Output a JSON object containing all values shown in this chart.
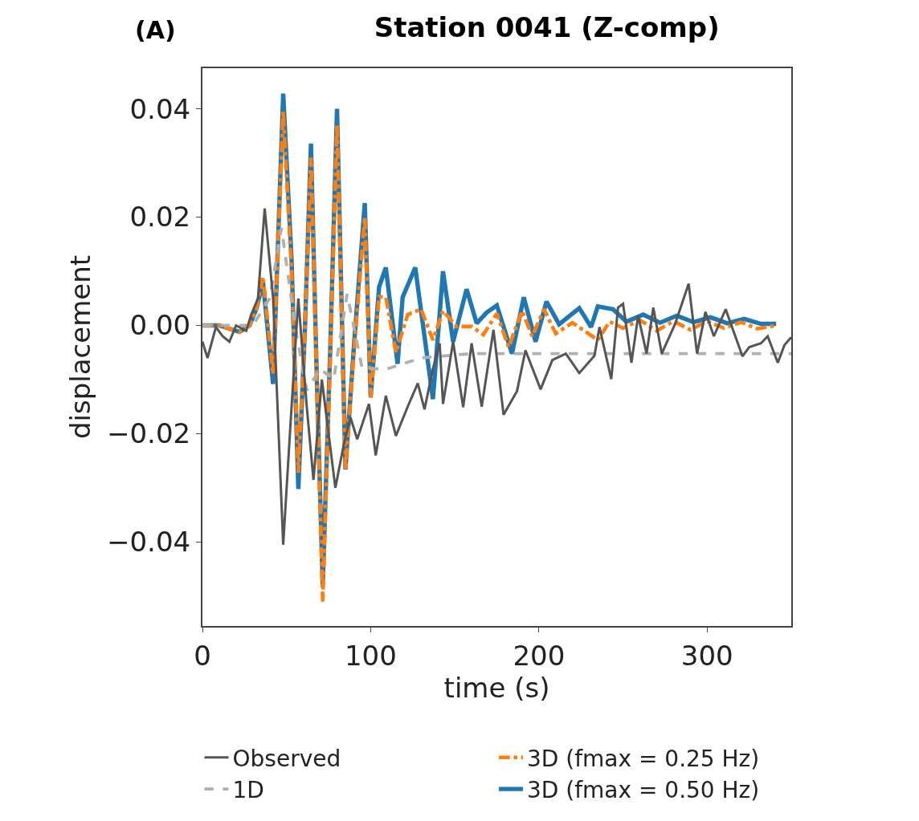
{
  "chart_data": {
    "type": "line",
    "title": "Station 0041 (Z-comp)",
    "xlabel": "time (s)",
    "ylabel": "displacement",
    "annotations": [
      "(A)"
    ],
    "xlim": [
      0,
      350
    ],
    "ylim": [
      -0.0555,
      0.0475
    ],
    "xticks": [
      0,
      100,
      200,
      300
    ],
    "yticks": [
      {
        "value": -0.04,
        "label": "−0.04"
      },
      {
        "value": -0.02,
        "label": "−0.02"
      },
      {
        "value": 0,
        "label": "0.00"
      },
      {
        "value": 0.02,
        "label": "0.02"
      },
      {
        "value": 0.04,
        "label": "0.04"
      }
    ],
    "grid": false,
    "legend": "bottom",
    "marker": "none",
    "series": [
      {
        "name": "Observed",
        "color": "#555555",
        "line_style": "solid",
        "x": [
          0,
          3,
          8,
          12,
          16,
          20,
          26,
          29,
          33,
          37,
          42,
          48,
          52,
          57,
          62,
          66,
          71,
          75,
          79,
          84,
          88,
          92,
          99,
          103,
          109,
          115,
          122,
          128,
          132,
          137,
          141,
          143,
          149,
          155,
          160,
          166,
          173,
          179,
          187,
          192,
          201,
          208,
          216,
          224,
          233,
          236,
          243,
          247,
          250,
          255,
          259,
          264,
          268,
          273,
          281,
          285,
          289,
          294,
          299,
          304,
          311,
          321,
          325,
          332,
          336,
          342,
          346,
          350
        ],
        "values": [
          -0.003,
          -0.006,
          -0.0003,
          -0.002,
          -0.003,
          0,
          -0.001,
          0.002,
          0.005,
          0.0216,
          0.005,
          -0.0405,
          -0.02,
          0.005,
          -0.015,
          -0.0285,
          -0.01,
          -0.02,
          -0.03,
          -0.022,
          -0.017,
          -0.021,
          -0.0145,
          -0.024,
          -0.013,
          -0.0204,
          -0.015,
          -0.0107,
          -0.0155,
          -0.008,
          -0.0033,
          -0.0145,
          -0.003,
          -0.0151,
          -0.0033,
          -0.015,
          -0.0008,
          -0.0165,
          -0.0121,
          -0.0046,
          -0.0118,
          -0.0064,
          -0.0052,
          -0.0088,
          -0.0056,
          -0.0003,
          -0.0099,
          0.0033,
          0.004,
          -0.0069,
          0.0018,
          -0.0052,
          0.0033,
          -0.0052,
          0.0003,
          0.004,
          0.0077,
          -0.0052,
          0.0025,
          -0.002,
          0.003,
          -0.0057,
          -0.004,
          -0.0033,
          -0.002,
          -0.0069,
          -0.0036,
          -0.0022
        ]
      },
      {
        "name": "1D",
        "color": "#b0b0b0",
        "line_style": "dashed",
        "x": [
          0,
          30,
          40,
          47,
          55,
          62,
          70,
          78,
          86,
          95,
          110,
          130,
          160,
          350
        ],
        "values": [
          0,
          0,
          0.005,
          0.018,
          0,
          -0.012,
          -0.008,
          -0.01,
          0.0058,
          -0.008,
          -0.008,
          -0.006,
          -0.0052,
          -0.0052
        ]
      },
      {
        "name": "3D (fmax = 0.25 Hz)",
        "color": "#ff7f0e",
        "line_style": "dashdot",
        "x": [
          0,
          10,
          22,
          28,
          32,
          36,
          42,
          48,
          53,
          57,
          61,
          64.5,
          68,
          71.5,
          76,
          80,
          85,
          90,
          96.5,
          100,
          105,
          109,
          115,
          122,
          130,
          137,
          143,
          151,
          160,
          167,
          175,
          182,
          190,
          196,
          203,
          210,
          220,
          235,
          242,
          250,
          260,
          270,
          280,
          290,
          300,
          310,
          320,
          330,
          341
        ],
        "values": [
          0,
          0,
          -0.0012,
          0,
          0.003,
          0.009,
          -0.009,
          0.0395,
          0.01,
          -0.0272,
          0.0,
          0.031,
          -0.01,
          -0.051,
          -0.005,
          0.037,
          -0.0266,
          -0.005,
          0.02,
          -0.0133,
          0.0053,
          0.0052,
          -0.005,
          0.002,
          0.003,
          -0.0027,
          0.0027,
          -0.0002,
          -0.0002,
          -0.0017,
          0.0022,
          -0.004,
          0.0027,
          -0.002,
          0.003,
          -0.0015,
          0.0005,
          -0.0027,
          0.0007,
          -0.0005,
          0.001,
          -0.001,
          0.0008,
          -0.0008,
          0.0008,
          -0.0005,
          0.0006,
          -0.0006,
          0
        ]
      },
      {
        "name": "3D (fmax = 0.50 Hz)",
        "color": "#1f77b4",
        "line_style": "solid",
        "x": [
          0,
          10,
          22,
          28,
          32,
          36,
          42,
          48,
          53,
          57,
          61,
          64.5,
          68,
          71.5,
          76,
          80,
          85,
          90,
          96.5,
          100,
          105,
          109,
          116,
          119,
          126.5,
          137,
          143,
          149,
          157,
          163,
          169,
          175,
          184,
          191,
          198,
          204.5,
          212,
          224,
          231,
          235,
          244,
          252,
          262,
          272,
          282,
          292,
          302,
          312,
          322,
          332,
          341
        ],
        "values": [
          0,
          0,
          -0.0012,
          0,
          0.003,
          0.008,
          -0.0108,
          0.0428,
          0.012,
          -0.0302,
          0.0,
          0.0336,
          -0.01,
          -0.048,
          -0.004,
          0.04,
          -0.0266,
          -0.004,
          0.0226,
          -0.0133,
          0.0071,
          0.0107,
          -0.0071,
          0.0052,
          0.0107,
          -0.0136,
          0.01,
          -0.003,
          0.0067,
          0.0004,
          0.0024,
          0.0037,
          -0.0052,
          0.0052,
          -0.003,
          0.0044,
          0.0002,
          0.0032,
          -0.0003,
          0.0035,
          0.003,
          0.0007,
          0.002,
          0.0005,
          0.0018,
          0.0006,
          0.0015,
          0.0004,
          0.0012,
          0.0003,
          0.0003
        ]
      }
    ]
  }
}
